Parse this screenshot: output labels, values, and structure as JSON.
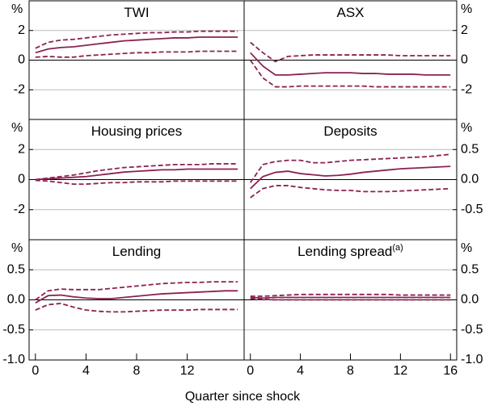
{
  "x_label": "Quarter since shock",
  "chart_data": [
    {
      "type": "line",
      "title": "TWI",
      "y_unit": "%",
      "y_axis_side": "left",
      "grid": true,
      "xlim": [
        -0.5,
        16.5
      ],
      "ylim": [
        -4,
        4
      ],
      "yticks": [
        -2,
        0,
        2
      ],
      "x": [
        0,
        1,
        2,
        3,
        4,
        5,
        6,
        7,
        8,
        9,
        10,
        11,
        12,
        13,
        14,
        15,
        16
      ],
      "series": [
        {
          "color": "#8b2252",
          "style": "solid",
          "values": [
            0.5,
            0.75,
            0.85,
            0.9,
            1.0,
            1.1,
            1.2,
            1.3,
            1.35,
            1.4,
            1.45,
            1.5,
            1.5,
            1.55,
            1.55,
            1.55,
            1.55
          ]
        },
        {
          "color": "#8b2252",
          "style": "dashed",
          "values": [
            0.8,
            1.2,
            1.35,
            1.4,
            1.5,
            1.6,
            1.7,
            1.75,
            1.8,
            1.85,
            1.85,
            1.9,
            1.9,
            1.95,
            1.95,
            1.95,
            1.95
          ]
        },
        {
          "color": "#8b2252",
          "style": "dashed",
          "values": [
            0.2,
            0.25,
            0.2,
            0.2,
            0.3,
            0.35,
            0.4,
            0.45,
            0.5,
            0.5,
            0.55,
            0.55,
            0.55,
            0.6,
            0.6,
            0.6,
            0.6
          ]
        }
      ]
    },
    {
      "type": "line",
      "title": "ASX",
      "y_unit": "%",
      "y_axis_side": "right",
      "grid": true,
      "xlim": [
        -0.5,
        16.5
      ],
      "ylim": [
        -4,
        4
      ],
      "yticks": [
        -2,
        0,
        2
      ],
      "x": [
        0,
        1,
        2,
        3,
        4,
        5,
        6,
        7,
        8,
        9,
        10,
        11,
        12,
        13,
        14,
        15,
        16
      ],
      "series": [
        {
          "color": "#8b2252",
          "style": "solid",
          "values": [
            0.5,
            -0.4,
            -1.0,
            -1.0,
            -0.95,
            -0.9,
            -0.85,
            -0.85,
            -0.85,
            -0.9,
            -0.9,
            -0.95,
            -0.95,
            -0.95,
            -1.0,
            -1.0,
            -1.0
          ]
        },
        {
          "color": "#8b2252",
          "style": "dashed",
          "values": [
            1.2,
            0.5,
            -0.1,
            0.25,
            0.3,
            0.35,
            0.35,
            0.35,
            0.35,
            0.35,
            0.35,
            0.35,
            0.3,
            0.3,
            0.3,
            0.3,
            0.3
          ]
        },
        {
          "color": "#8b2252",
          "style": "dashed",
          "values": [
            0.0,
            -1.2,
            -1.8,
            -1.8,
            -1.75,
            -1.75,
            -1.75,
            -1.75,
            -1.75,
            -1.75,
            -1.8,
            -1.8,
            -1.8,
            -1.8,
            -1.8,
            -1.8,
            -1.8
          ]
        }
      ]
    },
    {
      "type": "line",
      "title": "Housing prices",
      "y_unit": "%",
      "y_axis_side": "left",
      "grid": true,
      "xlim": [
        -0.5,
        16.5
      ],
      "ylim": [
        -4,
        4
      ],
      "yticks": [
        -2,
        0,
        2
      ],
      "x": [
        0,
        1,
        2,
        3,
        4,
        5,
        6,
        7,
        8,
        9,
        10,
        11,
        12,
        13,
        14,
        15,
        16
      ],
      "series": [
        {
          "color": "#8b2252",
          "style": "solid",
          "values": [
            0,
            0.05,
            0.1,
            0.15,
            0.2,
            0.3,
            0.4,
            0.5,
            0.55,
            0.6,
            0.65,
            0.65,
            0.7,
            0.7,
            0.7,
            0.7,
            0.7
          ]
        },
        {
          "color": "#8b2252",
          "style": "dashed",
          "values": [
            0,
            0.1,
            0.2,
            0.3,
            0.45,
            0.6,
            0.7,
            0.8,
            0.85,
            0.9,
            0.95,
            1.0,
            1.0,
            1.0,
            1.05,
            1.05,
            1.05
          ]
        },
        {
          "color": "#8b2252",
          "style": "dashed",
          "values": [
            -0.05,
            -0.1,
            -0.2,
            -0.3,
            -0.3,
            -0.25,
            -0.2,
            -0.2,
            -0.15,
            -0.15,
            -0.15,
            -0.1,
            -0.1,
            -0.1,
            -0.1,
            -0.1,
            -0.1
          ]
        }
      ]
    },
    {
      "type": "line",
      "title": "Deposits",
      "y_unit": "%",
      "y_axis_side": "right",
      "grid": true,
      "xlim": [
        -0.5,
        16.5
      ],
      "ylim": [
        -1,
        1
      ],
      "yticks": [
        -0.5,
        {
          "value": 0,
          "label": "0.0"
        },
        0.5
      ],
      "x": [
        0,
        1,
        2,
        3,
        4,
        5,
        6,
        7,
        8,
        9,
        10,
        11,
        12,
        13,
        14,
        15,
        16
      ],
      "series": [
        {
          "color": "#8b2252",
          "style": "solid",
          "values": [
            -0.15,
            0.05,
            0.12,
            0.14,
            0.1,
            0.08,
            0.06,
            0.07,
            0.09,
            0.12,
            0.14,
            0.16,
            0.18,
            0.19,
            0.2,
            0.21,
            0.22
          ]
        },
        {
          "color": "#8b2252",
          "style": "dashed",
          "values": [
            -0.05,
            0.25,
            0.3,
            0.32,
            0.32,
            0.28,
            0.28,
            0.3,
            0.32,
            0.33,
            0.34,
            0.35,
            0.36,
            0.37,
            0.38,
            0.4,
            0.42
          ]
        },
        {
          "color": "#8b2252",
          "style": "dashed",
          "values": [
            -0.3,
            -0.15,
            -0.1,
            -0.1,
            -0.13,
            -0.15,
            -0.17,
            -0.18,
            -0.18,
            -0.2,
            -0.2,
            -0.2,
            -0.19,
            -0.18,
            -0.17,
            -0.16,
            -0.15
          ]
        }
      ]
    },
    {
      "type": "line",
      "title": "Lending",
      "y_unit": "%",
      "y_axis_side": "left",
      "grid": true,
      "xlim": [
        -0.5,
        16.5
      ],
      "ylim": [
        -1,
        1
      ],
      "yticks": [
        {
          "value": -1,
          "label": "-1.0"
        },
        -0.5,
        {
          "value": 0,
          "label": "0.0"
        },
        0.5
      ],
      "xticks": [
        0,
        4,
        8,
        12
      ],
      "x": [
        0,
        1,
        2,
        3,
        4,
        5,
        6,
        7,
        8,
        9,
        10,
        11,
        12,
        13,
        14,
        15,
        16
      ],
      "series": [
        {
          "color": "#8b2252",
          "style": "solid",
          "values": [
            -0.05,
            0.07,
            0.08,
            0.05,
            0.03,
            0.02,
            0.02,
            0.04,
            0.06,
            0.08,
            0.1,
            0.11,
            0.12,
            0.13,
            0.14,
            0.15,
            0.15
          ]
        },
        {
          "color": "#8b2252",
          "style": "dashed",
          "values": [
            0.0,
            0.15,
            0.18,
            0.17,
            0.17,
            0.17,
            0.19,
            0.21,
            0.23,
            0.25,
            0.27,
            0.28,
            0.29,
            0.29,
            0.3,
            0.3,
            0.3
          ]
        },
        {
          "color": "#8b2252",
          "style": "dashed",
          "values": [
            -0.17,
            -0.08,
            -0.06,
            -0.12,
            -0.17,
            -0.19,
            -0.2,
            -0.2,
            -0.19,
            -0.18,
            -0.17,
            -0.17,
            -0.17,
            -0.16,
            -0.16,
            -0.16,
            -0.16
          ]
        }
      ]
    },
    {
      "type": "line",
      "title": "Lending spread",
      "title_note": "(a)",
      "y_unit": "%",
      "y_axis_side": "right",
      "grid": true,
      "xlim": [
        -0.5,
        16.5
      ],
      "ylim": [
        -1,
        1
      ],
      "yticks": [
        {
          "value": -1,
          "label": "-1.0"
        },
        -0.5,
        {
          "value": 0,
          "label": "0.0"
        },
        0.5
      ],
      "xticks": [
        0,
        4,
        8,
        12,
        16
      ],
      "x": [
        0,
        1,
        2,
        3,
        4,
        5,
        6,
        7,
        8,
        9,
        10,
        11,
        12,
        13,
        14,
        15,
        16
      ],
      "series": [
        {
          "color": "#8b2252",
          "style": "solid",
          "values": [
            0.04,
            0.03,
            0.04,
            0.04,
            0.04,
            0.04,
            0.04,
            0.04,
            0.04,
            0.04,
            0.04,
            0.04,
            0.04,
            0.04,
            0.04,
            0.04,
            0.04
          ]
        },
        {
          "color": "#8b2252",
          "style": "dashed",
          "values": [
            0.06,
            0.06,
            0.07,
            0.08,
            0.09,
            0.09,
            0.09,
            0.09,
            0.09,
            0.09,
            0.09,
            0.09,
            0.08,
            0.08,
            0.08,
            0.08,
            0.08
          ]
        },
        {
          "color": "#8b2252",
          "style": "dashed",
          "values": [
            0.02,
            0.01,
            0.0,
            0.0,
            0.0,
            0.0,
            0.0,
            0.0,
            0.0,
            0.0,
            0.0,
            0.0,
            0.0,
            0.0,
            0.0,
            0.0,
            0.0
          ]
        }
      ]
    }
  ]
}
